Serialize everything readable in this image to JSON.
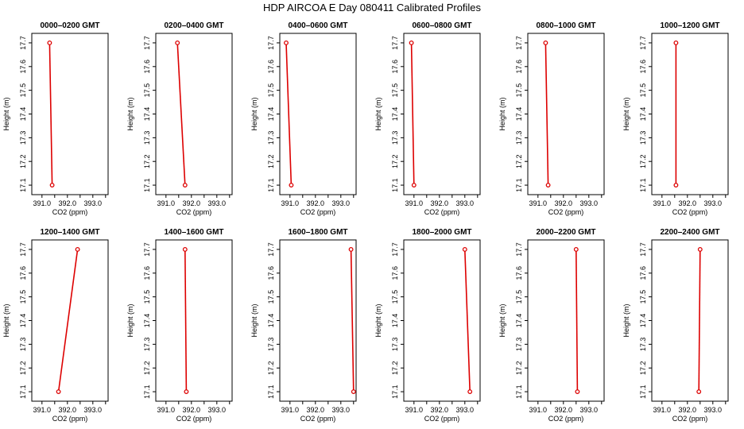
{
  "figure_title": "HDP AIRCOA E  Day 080411  Calibrated Profiles",
  "colors": {
    "line": "#dd0000",
    "axis": "#000000"
  },
  "chart_data": [
    {
      "type": "line",
      "title": "0000–0200 GMT",
      "xlabel": "CO2 (ppm)",
      "ylabel": "Height (m)",
      "xlim": [
        390.6,
        393.6
      ],
      "ylim": [
        17.06,
        17.74
      ],
      "xticks": [
        "391.0",
        "392.0",
        "393.0"
      ],
      "yticks": [
        "17.1",
        "17.2",
        "17.3",
        "17.4",
        "17.5",
        "17.6",
        "17.7"
      ],
      "series": [
        {
          "x": [
            391.3,
            391.4
          ],
          "y": [
            17.7,
            17.1
          ]
        }
      ]
    },
    {
      "type": "line",
      "title": "0200–0400 GMT",
      "xlabel": "CO2 (ppm)",
      "ylabel": "Height (m)",
      "xlim": [
        390.6,
        393.6
      ],
      "ylim": [
        17.06,
        17.74
      ],
      "xticks": [
        "391.0",
        "392.0",
        "393.0"
      ],
      "yticks": [
        "17.1",
        "17.2",
        "17.3",
        "17.4",
        "17.5",
        "17.6",
        "17.7"
      ],
      "series": [
        {
          "x": [
            391.45,
            391.75
          ],
          "y": [
            17.7,
            17.1
          ]
        }
      ]
    },
    {
      "type": "line",
      "title": "0400–0600 GMT",
      "xlabel": "CO2 (ppm)",
      "ylabel": "Height (m)",
      "xlim": [
        390.6,
        393.6
      ],
      "ylim": [
        17.06,
        17.74
      ],
      "xticks": [
        "391.0",
        "392.0",
        "393.0"
      ],
      "yticks": [
        "17.1",
        "17.2",
        "17.3",
        "17.4",
        "17.5",
        "17.6",
        "17.7"
      ],
      "series": [
        {
          "x": [
            390.85,
            391.05
          ],
          "y": [
            17.7,
            17.1
          ]
        }
      ]
    },
    {
      "type": "line",
      "title": "0600–0800 GMT",
      "xlabel": "CO2 (ppm)",
      "ylabel": "Height (m)",
      "xlim": [
        390.6,
        393.6
      ],
      "ylim": [
        17.06,
        17.74
      ],
      "xticks": [
        "391.0",
        "392.0",
        "393.0"
      ],
      "yticks": [
        "17.1",
        "17.2",
        "17.3",
        "17.4",
        "17.5",
        "17.6",
        "17.7"
      ],
      "series": [
        {
          "x": [
            390.9,
            391.0
          ],
          "y": [
            17.7,
            17.1
          ]
        }
      ]
    },
    {
      "type": "line",
      "title": "0800–1000 GMT",
      "xlabel": "CO2 (ppm)",
      "ylabel": "Height (m)",
      "xlim": [
        390.6,
        393.6
      ],
      "ylim": [
        17.06,
        17.74
      ],
      "xticks": [
        "391.0",
        "392.0",
        "393.0"
      ],
      "yticks": [
        "17.1",
        "17.2",
        "17.3",
        "17.4",
        "17.5",
        "17.6",
        "17.7"
      ],
      "series": [
        {
          "x": [
            391.3,
            391.4
          ],
          "y": [
            17.7,
            17.1
          ]
        }
      ]
    },
    {
      "type": "line",
      "title": "1000–1200 GMT",
      "xlabel": "CO2 (ppm)",
      "ylabel": "Height (m)",
      "xlim": [
        390.6,
        393.6
      ],
      "ylim": [
        17.06,
        17.74
      ],
      "xticks": [
        "391.0",
        "392.0",
        "393.0"
      ],
      "yticks": [
        "17.1",
        "17.2",
        "17.3",
        "17.4",
        "17.5",
        "17.6",
        "17.7"
      ],
      "series": [
        {
          "x": [
            391.55,
            391.55
          ],
          "y": [
            17.7,
            17.1
          ]
        }
      ]
    },
    {
      "type": "line",
      "title": "1200–1400 GMT",
      "xlabel": "CO2 (ppm)",
      "ylabel": "Height (m)",
      "xlim": [
        390.6,
        393.6
      ],
      "ylim": [
        17.06,
        17.74
      ],
      "xticks": [
        "391.0",
        "392.0",
        "393.0"
      ],
      "yticks": [
        "17.1",
        "17.2",
        "17.3",
        "17.4",
        "17.5",
        "17.6",
        "17.7"
      ],
      "series": [
        {
          "x": [
            392.4,
            391.65
          ],
          "y": [
            17.7,
            17.1
          ]
        }
      ]
    },
    {
      "type": "line",
      "title": "1400–1600 GMT",
      "xlabel": "CO2 (ppm)",
      "ylabel": "Height (m)",
      "xlim": [
        390.6,
        393.6
      ],
      "ylim": [
        17.06,
        17.74
      ],
      "xticks": [
        "391.0",
        "392.0",
        "393.0"
      ],
      "yticks": [
        "17.1",
        "17.2",
        "17.3",
        "17.4",
        "17.5",
        "17.6",
        "17.7"
      ],
      "series": [
        {
          "x": [
            391.75,
            391.8
          ],
          "y": [
            17.7,
            17.1
          ]
        }
      ]
    },
    {
      "type": "line",
      "title": "1600–1800 GMT",
      "xlabel": "CO2 (ppm)",
      "ylabel": "Height (m)",
      "xlim": [
        390.6,
        393.6
      ],
      "ylim": [
        17.06,
        17.74
      ],
      "xticks": [
        "391.0",
        "392.0",
        "393.0"
      ],
      "yticks": [
        "17.1",
        "17.2",
        "17.3",
        "17.4",
        "17.5",
        "17.6",
        "17.7"
      ],
      "series": [
        {
          "x": [
            393.4,
            393.5
          ],
          "y": [
            17.7,
            17.1
          ]
        }
      ]
    },
    {
      "type": "line",
      "title": "1800–2000 GMT",
      "xlabel": "CO2 (ppm)",
      "ylabel": "Height (m)",
      "xlim": [
        390.6,
        393.6
      ],
      "ylim": [
        17.06,
        17.74
      ],
      "xticks": [
        "391.0",
        "392.0",
        "393.0"
      ],
      "yticks": [
        "17.1",
        "17.2",
        "17.3",
        "17.4",
        "17.5",
        "17.6",
        "17.7"
      ],
      "series": [
        {
          "x": [
            393.0,
            393.2
          ],
          "y": [
            17.7,
            17.1
          ]
        }
      ]
    },
    {
      "type": "line",
      "title": "2000–2200 GMT",
      "xlabel": "CO2 (ppm)",
      "ylabel": "Height (m)",
      "xlim": [
        390.6,
        393.6
      ],
      "ylim": [
        17.06,
        17.74
      ],
      "xticks": [
        "391.0",
        "392.0",
        "393.0"
      ],
      "yticks": [
        "17.1",
        "17.2",
        "17.3",
        "17.4",
        "17.5",
        "17.6",
        "17.7"
      ],
      "series": [
        {
          "x": [
            392.5,
            392.55
          ],
          "y": [
            17.7,
            17.1
          ]
        }
      ]
    },
    {
      "type": "line",
      "title": "2200–2400 GMT",
      "xlabel": "CO2 (ppm)",
      "ylabel": "Height (m)",
      "xlim": [
        390.6,
        393.6
      ],
      "ylim": [
        17.06,
        17.74
      ],
      "xticks": [
        "391.0",
        "392.0",
        "393.0"
      ],
      "yticks": [
        "17.1",
        "17.2",
        "17.3",
        "17.4",
        "17.5",
        "17.6",
        "17.7"
      ],
      "series": [
        {
          "x": [
            392.5,
            392.45
          ],
          "y": [
            17.7,
            17.1
          ]
        }
      ]
    }
  ]
}
